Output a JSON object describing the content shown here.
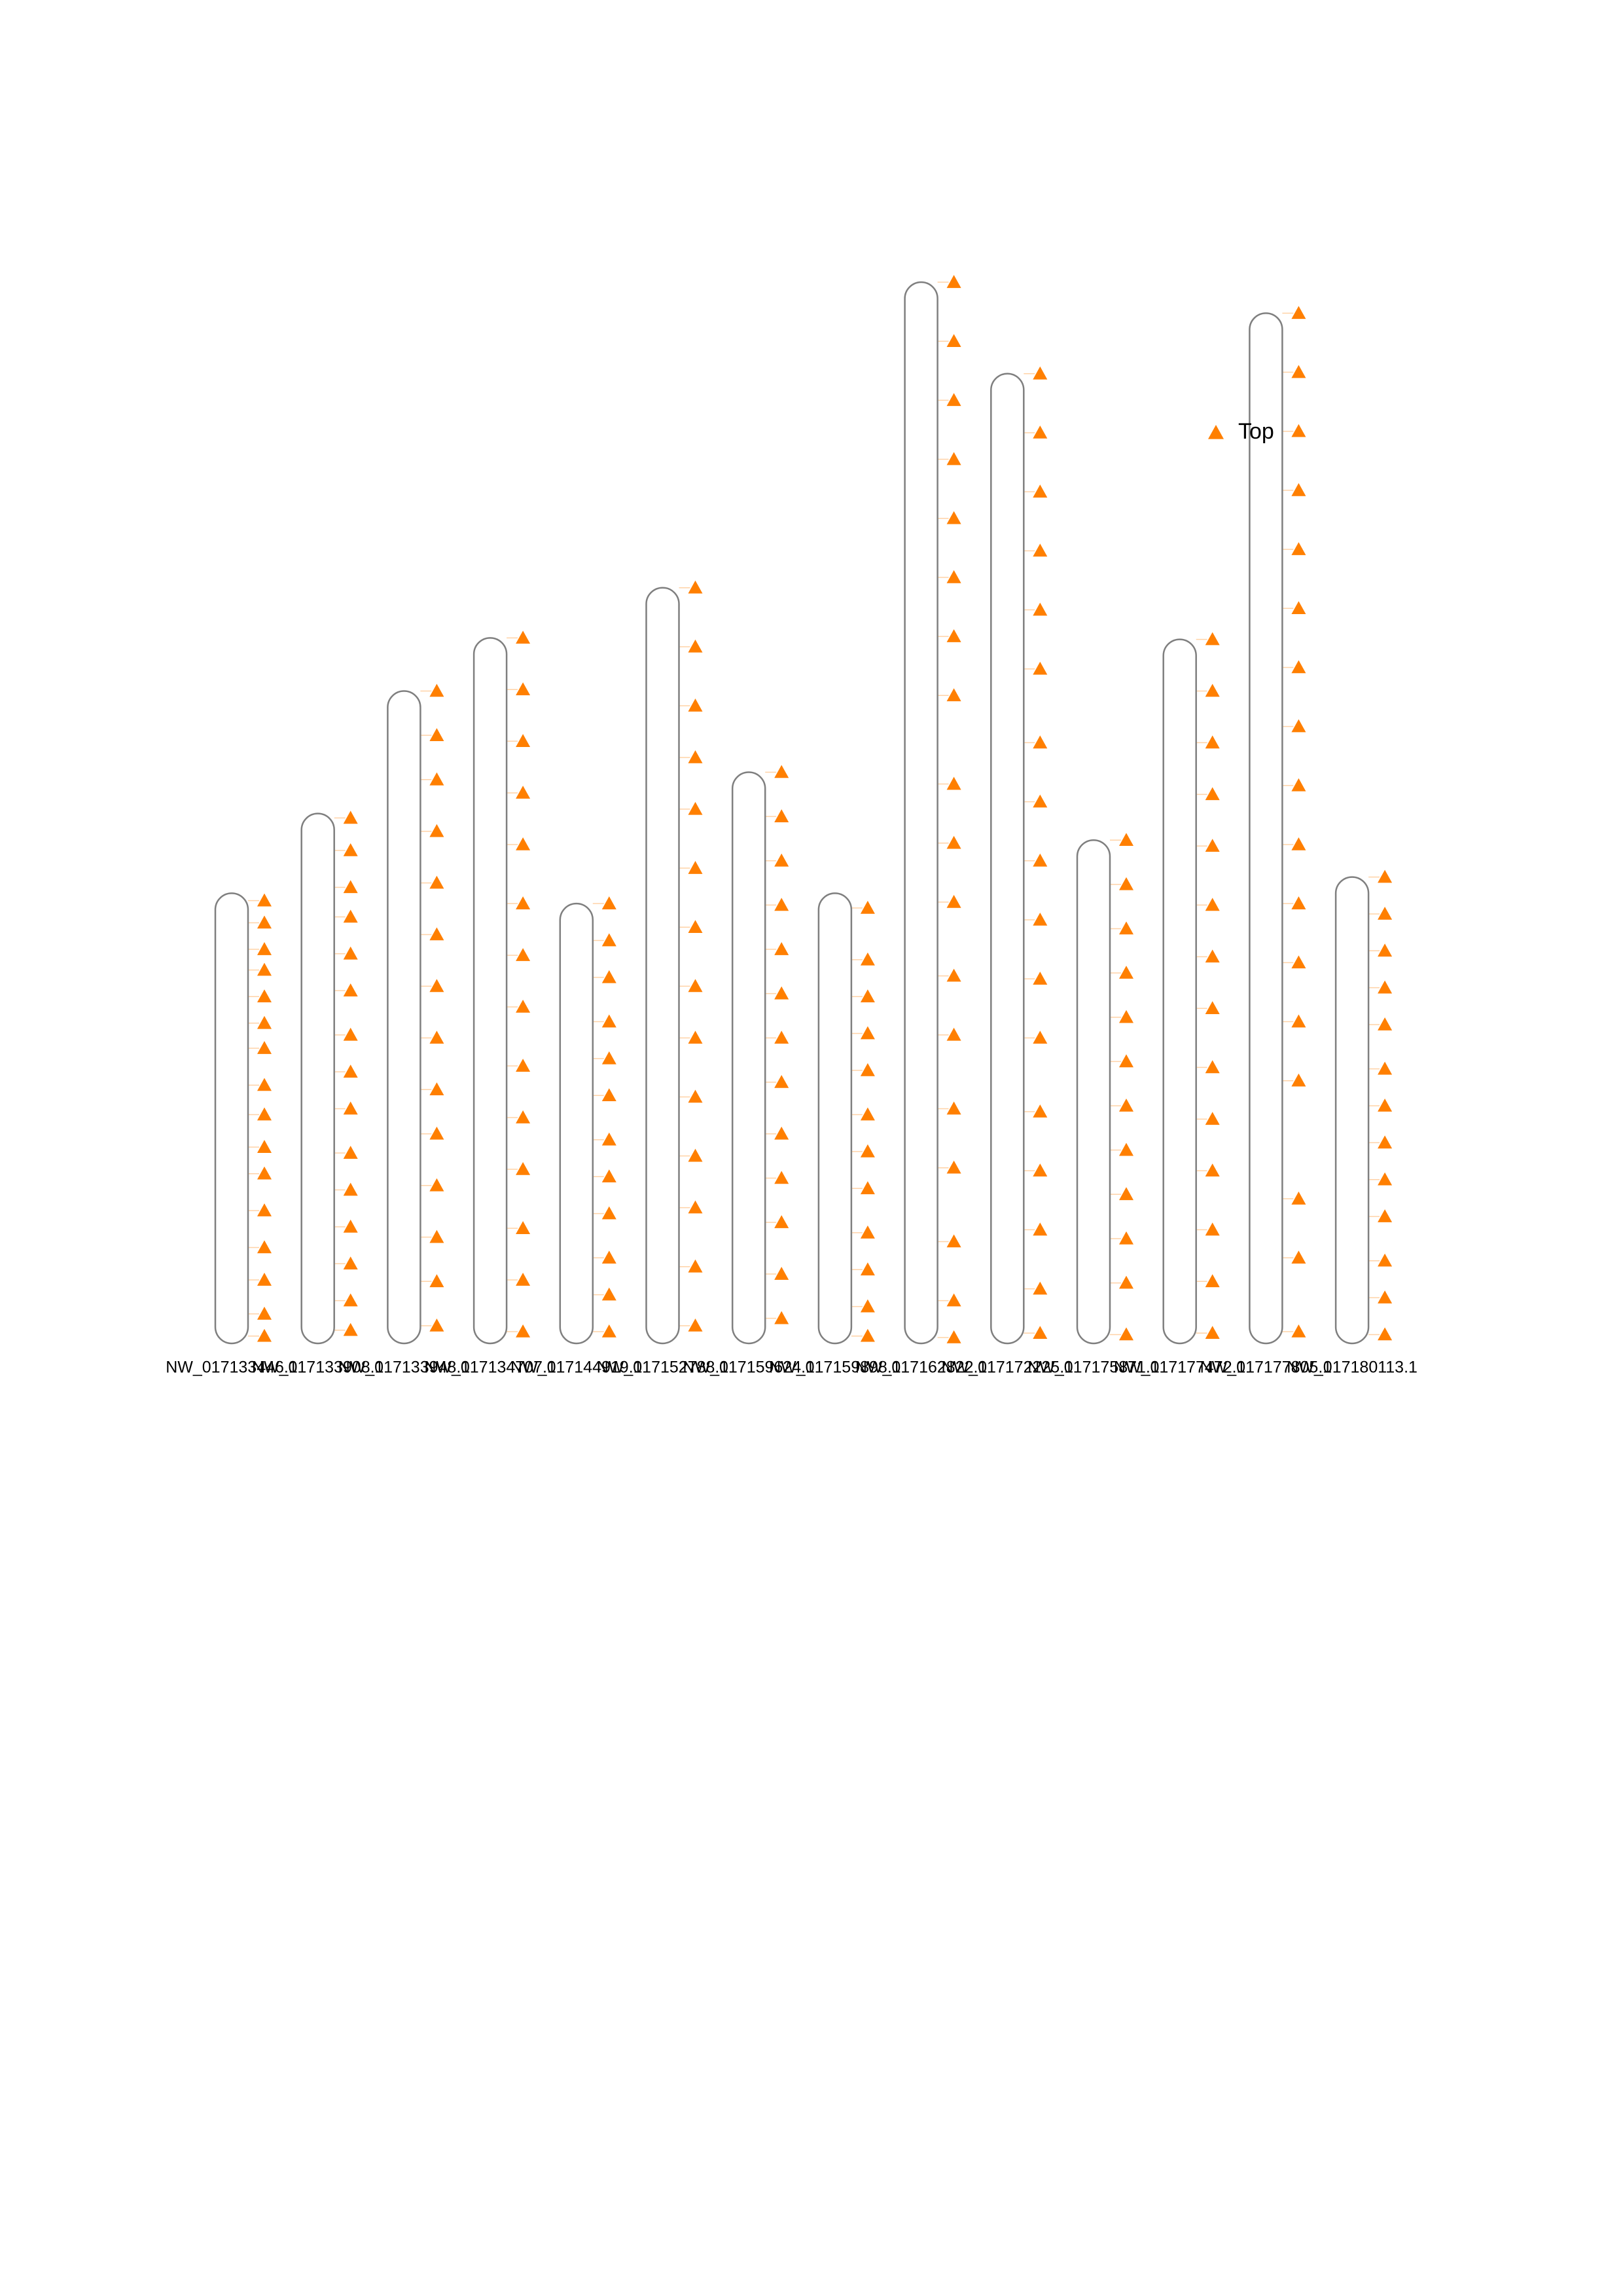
{
  "chart_data": {
    "type": "ideogram",
    "series": [
      {
        "name": "Top",
        "color": "#ff7f00"
      }
    ],
    "chromosomes": [
      {
        "name": "NW_017133446.1",
        "length": 305,
        "markers": [
          5,
          20,
          38,
          52,
          70,
          88,
          105,
          130,
          150,
          172,
          190,
          215,
          240,
          262,
          285,
          300
        ]
      },
      {
        "name": "NW_017133908.1",
        "length": 359,
        "markers": [
          3,
          25,
          50,
          70,
          95,
          120,
          150,
          175,
          200,
          230,
          255,
          280,
          305,
          330,
          350
        ]
      },
      {
        "name": "NW_017133948.1",
        "length": 442,
        "markers": [
          0,
          30,
          60,
          95,
          130,
          165,
          200,
          235,
          270,
          300,
          335,
          370,
          400,
          430
        ]
      },
      {
        "name": "NW_017134707.1",
        "length": 478,
        "markers": [
          0,
          35,
          70,
          105,
          140,
          180,
          215,
          250,
          290,
          325,
          360,
          400,
          435,
          470
        ]
      },
      {
        "name": "NW_017144919.1",
        "length": 298,
        "markers": [
          0,
          25,
          50,
          80,
          105,
          130,
          160,
          185,
          210,
          240,
          265,
          290
        ]
      },
      {
        "name": "NW_017152788.1",
        "length": 512,
        "markers": [
          0,
          40,
          80,
          115,
          150,
          190,
          230,
          270,
          305,
          345,
          385,
          420,
          460,
          500
        ]
      },
      {
        "name": "NW_017159624.1",
        "length": 387,
        "markers": [
          0,
          30,
          60,
          90,
          120,
          150,
          180,
          210,
          245,
          275,
          305,
          340,
          370
        ]
      },
      {
        "name": "NW_017159898.1",
        "length": 305,
        "markers": [
          10,
          45,
          70,
          95,
          120,
          150,
          175,
          200,
          230,
          255,
          280,
          300
        ]
      },
      {
        "name": "NW_017162822.1",
        "length": 719,
        "markers": [
          0,
          40,
          80,
          120,
          160,
          200,
          240,
          280,
          340,
          380,
          420,
          470,
          510,
          560,
          600,
          650,
          690,
          715
        ]
      },
      {
        "name": "NW_017172225.1",
        "length": 657,
        "markers": [
          0,
          40,
          80,
          120,
          160,
          200,
          250,
          290,
          330,
          370,
          410,
          450,
          500,
          540,
          580,
          620,
          650
        ]
      },
      {
        "name": "NW_017175871.1",
        "length": 341,
        "markers": [
          0,
          30,
          60,
          90,
          120,
          150,
          180,
          210,
          240,
          270,
          300,
          335
        ]
      },
      {
        "name": "NW_017177472.1",
        "length": 477,
        "markers": [
          0,
          35,
          70,
          105,
          140,
          180,
          215,
          250,
          290,
          325,
          360,
          400,
          435,
          470
        ]
      },
      {
        "name": "NW_017177805.1",
        "length": 698,
        "markers": [
          0,
          40,
          80,
          120,
          160,
          200,
          240,
          280,
          320,
          360,
          400,
          440,
          480,
          520,
          600,
          640,
          690
        ]
      },
      {
        "name": "NW_017180113.1",
        "length": 316,
        "markers": [
          0,
          25,
          50,
          75,
          100,
          130,
          155,
          180,
          205,
          230,
          260,
          285,
          310
        ]
      }
    ]
  }
}
